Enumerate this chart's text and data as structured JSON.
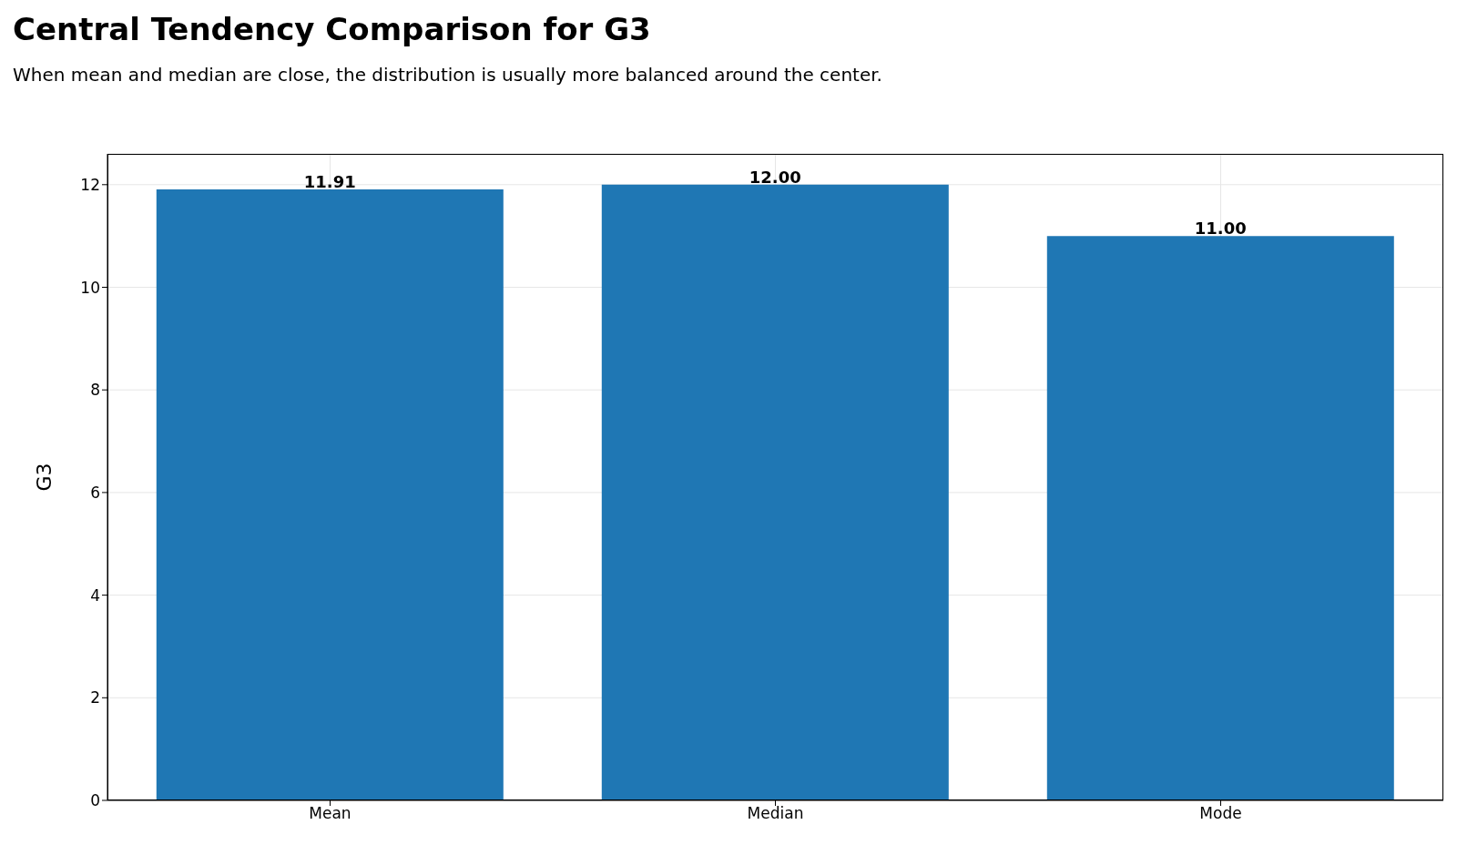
{
  "chart_data": {
    "type": "bar",
    "title": "Central Tendency Comparison for G3",
    "subtitle": "When mean and median are close, the distribution is usually more balanced around the center.",
    "ylabel": "G3",
    "categories": [
      "Mean",
      "Median",
      "Mode"
    ],
    "values": [
      11.91,
      12,
      11
    ],
    "value_labels": [
      "11.91",
      "12.00",
      "11.00"
    ],
    "color": "#1f77b4",
    "ylim": [
      0,
      12.6
    ],
    "yticks": [
      0,
      2,
      4,
      6,
      8,
      10,
      12
    ],
    "grid": true
  }
}
